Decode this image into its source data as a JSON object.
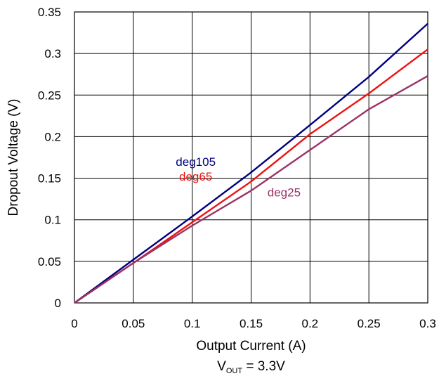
{
  "chart_data": {
    "type": "line",
    "title": "",
    "xlabel": "Output Current (A)",
    "ylabel": "Dropout Voltage (V)",
    "note": {
      "prefix": "V",
      "subscript": "OUT",
      "suffix": " = 3.3V"
    },
    "xlim": [
      0,
      0.3
    ],
    "ylim": [
      0,
      0.35
    ],
    "x_ticks": [
      "0",
      "0.05",
      "0.1",
      "0.15",
      "0.2",
      "0.25",
      "0.3"
    ],
    "y_ticks": [
      "0",
      "0.05",
      "0.1",
      "0.15",
      "0.2",
      "0.25",
      "0.3",
      "0.35"
    ],
    "grid": true,
    "x": [
      0,
      0.05,
      0.1,
      0.15,
      0.2,
      0.25,
      0.3
    ],
    "series": [
      {
        "name": "deg105",
        "color": "#000080",
        "values": [
          0,
          0.052,
          0.104,
          0.157,
          0.214,
          0.272,
          0.336
        ],
        "label_at": [
          0.1,
          0.17
        ]
      },
      {
        "name": "deg65",
        "color": "#ee1111",
        "values": [
          0,
          0.048,
          0.097,
          0.146,
          0.203,
          0.252,
          0.305
        ],
        "label_at": [
          0.1,
          0.152
        ]
      },
      {
        "name": "deg25",
        "color": "#993366",
        "values": [
          0,
          0.048,
          0.093,
          0.135,
          0.184,
          0.233,
          0.273
        ],
        "label_at": [
          0.175,
          0.133
        ]
      }
    ]
  }
}
